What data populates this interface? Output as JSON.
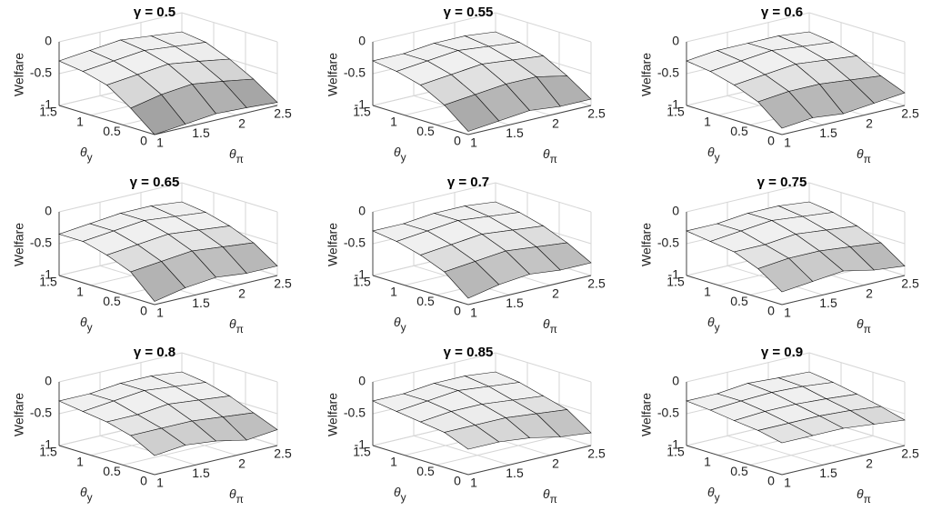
{
  "chart_data": [
    {
      "type": "surface",
      "title": "γ = 0.5",
      "xlabel": "θπ",
      "ylabel": "θy",
      "zlabel": "Welfare",
      "xlim": [
        1,
        2.5
      ],
      "ylim": [
        0,
        1.5
      ],
      "zlim": [
        -1,
        0
      ],
      "xticks": [
        1,
        1.5,
        2,
        2.5
      ],
      "yticks": [
        0,
        0.5,
        1,
        1.5
      ],
      "zticks": [
        -1,
        -0.5,
        0
      ],
      "x": [
        1,
        1.375,
        1.75,
        2.125,
        2.5
      ],
      "y": [
        0,
        0.375,
        0.75,
        1.125,
        1.5
      ],
      "z": [
        [
          -1,
          -0.95,
          -0.9,
          -0.92,
          -0.95
        ],
        [
          -0.7,
          -0.6,
          -0.55,
          -0.62,
          -0.7
        ],
        [
          -0.45,
          -0.4,
          -0.35,
          -0.42,
          -0.5
        ],
        [
          -0.35,
          -0.3,
          -0.25,
          -0.3,
          -0.35
        ],
        [
          -0.3,
          -0.25,
          -0.2,
          -0.25,
          -0.3
        ]
      ]
    },
    {
      "type": "surface",
      "title": "γ = 0.55",
      "xlabel": "θπ",
      "ylabel": "θy",
      "zlabel": "Welfare",
      "xlim": [
        1,
        2.5
      ],
      "ylim": [
        0,
        1.5
      ],
      "zlim": [
        -1,
        0
      ],
      "xticks": [
        1,
        1.5,
        2,
        2.5
      ],
      "yticks": [
        0,
        0.5,
        1,
        1.5
      ],
      "zticks": [
        -1,
        -0.5,
        0
      ],
      "x": [
        1,
        1.375,
        1.75,
        2.125,
        2.5
      ],
      "y": [
        0,
        0.375,
        0.75,
        1.125,
        1.5
      ],
      "z": [
        [
          -0.95,
          -0.9,
          -0.85,
          -0.9,
          -0.9
        ],
        [
          -0.65,
          -0.6,
          -0.55,
          -0.55,
          -0.65
        ],
        [
          -0.45,
          -0.4,
          -0.35,
          -0.4,
          -0.45
        ],
        [
          -0.35,
          -0.3,
          -0.25,
          -0.3,
          -0.35
        ],
        [
          -0.3,
          -0.3,
          -0.25,
          -0.25,
          -0.3
        ]
      ]
    },
    {
      "type": "surface",
      "title": "γ = 0.6",
      "xlabel": "θπ",
      "ylabel": "θy",
      "zlabel": "Welfare",
      "xlim": [
        1,
        2.5
      ],
      "ylim": [
        0,
        1.5
      ],
      "zlim": [
        -1,
        0
      ],
      "xticks": [
        1,
        1.5,
        2,
        2.5
      ],
      "yticks": [
        0,
        0.5,
        1,
        1.5
      ],
      "zticks": [
        -1,
        -0.5,
        0
      ],
      "x": [
        1,
        1.375,
        1.75,
        2.125,
        2.5
      ],
      "y": [
        0,
        0.375,
        0.75,
        1.125,
        1.5
      ],
      "z": [
        [
          -0.9,
          -0.85,
          -0.9,
          -0.85,
          -0.8
        ],
        [
          -0.6,
          -0.55,
          -0.55,
          -0.6,
          -0.65
        ],
        [
          -0.45,
          -0.4,
          -0.35,
          -0.4,
          -0.45
        ],
        [
          -0.35,
          -0.3,
          -0.25,
          -0.3,
          -0.35
        ],
        [
          -0.3,
          -0.25,
          -0.25,
          -0.25,
          -0.3
        ]
      ]
    },
    {
      "type": "surface",
      "title": "γ = 0.65",
      "xlabel": "θπ",
      "ylabel": "θy",
      "zlabel": "Welfare",
      "xlim": [
        1,
        2.5
      ],
      "ylim": [
        0,
        1.5
      ],
      "zlim": [
        -1,
        0
      ],
      "xticks": [
        1,
        1.5,
        2,
        2.5
      ],
      "yticks": [
        0,
        0.5,
        1,
        1.5
      ],
      "zticks": [
        -1,
        -0.5,
        0
      ],
      "x": [
        1,
        1.375,
        1.75,
        2.125,
        2.5
      ],
      "y": [
        0,
        0.375,
        0.75,
        1.125,
        1.5
      ],
      "z": [
        [
          -0.95,
          -0.85,
          -0.8,
          -0.85,
          -0.85
        ],
        [
          -0.6,
          -0.55,
          -0.5,
          -0.55,
          -0.6
        ],
        [
          -0.45,
          -0.4,
          -0.35,
          -0.4,
          -0.45
        ],
        [
          -0.35,
          -0.3,
          -0.25,
          -0.3,
          -0.35
        ],
        [
          -0.35,
          -0.3,
          -0.25,
          -0.25,
          -0.3
        ]
      ]
    },
    {
      "type": "surface",
      "title": "γ = 0.7",
      "xlabel": "θπ",
      "ylabel": "θy",
      "zlabel": "Welfare",
      "xlim": [
        1,
        2.5
      ],
      "ylim": [
        0,
        1.5
      ],
      "zlim": [
        -1,
        0
      ],
      "xticks": [
        1,
        1.5,
        2,
        2.5
      ],
      "yticks": [
        0,
        0.5,
        1,
        1.5
      ],
      "zticks": [
        -1,
        -0.5,
        0
      ],
      "x": [
        1,
        1.375,
        1.75,
        2.125,
        2.5
      ],
      "y": [
        0,
        0.375,
        0.75,
        1.125,
        1.5
      ],
      "z": [
        [
          -0.9,
          -0.8,
          -0.75,
          -0.8,
          -0.8
        ],
        [
          -0.6,
          -0.55,
          -0.5,
          -0.55,
          -0.6
        ],
        [
          -0.45,
          -0.4,
          -0.35,
          -0.4,
          -0.45
        ],
        [
          -0.35,
          -0.3,
          -0.25,
          -0.3,
          -0.35
        ],
        [
          -0.3,
          -0.3,
          -0.25,
          -0.25,
          -0.3
        ]
      ]
    },
    {
      "type": "surface",
      "title": "γ = 0.75",
      "xlabel": "θπ",
      "ylabel": "θy",
      "zlabel": "Welfare",
      "xlim": [
        1,
        2.5
      ],
      "ylim": [
        0,
        1.5
      ],
      "zlim": [
        -1,
        0
      ],
      "xticks": [
        1,
        1.5,
        2,
        2.5
      ],
      "yticks": [
        0,
        0.5,
        1,
        1.5
      ],
      "zticks": [
        -1,
        -0.5,
        0
      ],
      "x": [
        1,
        1.375,
        1.75,
        2.125,
        2.5
      ],
      "y": [
        0,
        0.375,
        0.75,
        1.125,
        1.5
      ],
      "z": [
        [
          -0.8,
          -0.75,
          -0.7,
          -0.8,
          -0.85
        ],
        [
          -0.55,
          -0.5,
          -0.5,
          -0.55,
          -0.6
        ],
        [
          -0.4,
          -0.4,
          -0.35,
          -0.4,
          -0.45
        ],
        [
          -0.35,
          -0.3,
          -0.25,
          -0.3,
          -0.35
        ],
        [
          -0.3,
          -0.3,
          -0.25,
          -0.25,
          -0.3
        ]
      ]
    },
    {
      "type": "surface",
      "title": "γ = 0.8",
      "xlabel": "θπ",
      "ylabel": "θy",
      "zlabel": "Welfare",
      "xlim": [
        1,
        2.5
      ],
      "ylim": [
        0,
        1.5
      ],
      "zlim": [
        -1,
        0
      ],
      "xticks": [
        1,
        1.5,
        2,
        2.5
      ],
      "yticks": [
        0,
        0.5,
        1,
        1.5
      ],
      "zticks": [
        -1,
        -0.5,
        0
      ],
      "x": [
        1,
        1.375,
        1.75,
        2.125,
        2.5
      ],
      "y": [
        0,
        0.375,
        0.75,
        1.125,
        1.5
      ],
      "z": [
        [
          -0.7,
          -0.65,
          -0.7,
          -0.8,
          -0.75
        ],
        [
          -0.5,
          -0.5,
          -0.5,
          -0.55,
          -0.6
        ],
        [
          -0.4,
          -0.4,
          -0.35,
          -0.4,
          -0.45
        ],
        [
          -0.35,
          -0.3,
          -0.25,
          -0.3,
          -0.35
        ],
        [
          -0.3,
          -0.3,
          -0.25,
          -0.25,
          -0.3
        ]
      ]
    },
    {
      "type": "surface",
      "title": "γ = 0.85",
      "xlabel": "θπ",
      "ylabel": "θy",
      "zlabel": "Welfare",
      "xlim": [
        1,
        2.5
      ],
      "ylim": [
        0,
        1.5
      ],
      "zlim": [
        -1,
        0
      ],
      "xticks": [
        1,
        1.5,
        2,
        2.5
      ],
      "yticks": [
        0,
        0.5,
        1,
        1.5
      ],
      "zticks": [
        -1,
        -0.5,
        0
      ],
      "x": [
        1,
        1.375,
        1.75,
        2.125,
        2.5
      ],
      "y": [
        0,
        0.375,
        0.75,
        1.125,
        1.5
      ],
      "z": [
        [
          -0.6,
          -0.6,
          -0.65,
          -0.75,
          -0.8
        ],
        [
          -0.45,
          -0.45,
          -0.45,
          -0.5,
          -0.55
        ],
        [
          -0.4,
          -0.35,
          -0.35,
          -0.4,
          -0.45
        ],
        [
          -0.35,
          -0.3,
          -0.25,
          -0.3,
          -0.35
        ],
        [
          -0.3,
          -0.3,
          -0.25,
          -0.25,
          -0.3
        ]
      ]
    },
    {
      "type": "surface",
      "title": "γ = 0.9",
      "xlabel": "θπ",
      "ylabel": "θy",
      "zlabel": "Welfare",
      "xlim": [
        1,
        2.5
      ],
      "ylim": [
        0,
        1.5
      ],
      "zlim": [
        -1,
        0
      ],
      "xticks": [
        1,
        1.5,
        2,
        2.5
      ],
      "yticks": [
        0,
        0.5,
        1,
        1.5
      ],
      "zticks": [
        -1,
        -0.5,
        0
      ],
      "x": [
        1,
        1.375,
        1.75,
        2.125,
        2.5
      ],
      "y": [
        0,
        0.375,
        0.75,
        1.125,
        1.5
      ],
      "z": [
        [
          -0.5,
          -0.5,
          -0.5,
          -0.55,
          -0.6
        ],
        [
          -0.42,
          -0.42,
          -0.42,
          -0.45,
          -0.5
        ],
        [
          -0.38,
          -0.35,
          -0.35,
          -0.38,
          -0.42
        ],
        [
          -0.33,
          -0.3,
          -0.28,
          -0.3,
          -0.35
        ],
        [
          -0.3,
          -0.3,
          -0.25,
          -0.28,
          -0.3
        ]
      ]
    }
  ]
}
